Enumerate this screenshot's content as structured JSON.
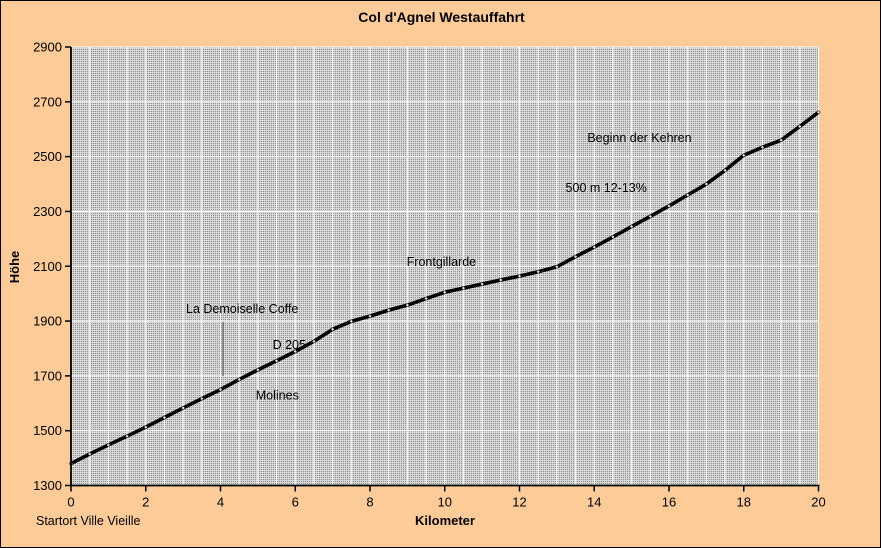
{
  "colors": {
    "page_background": "#fccb97",
    "plot_pattern_base": "#d7d7d7",
    "plot_pattern_dot": "#8e8e8e",
    "gridline": "#ffffff",
    "axis": "#000000",
    "series_line": "#000000",
    "pointer_line": "#757575",
    "text": "#000000"
  },
  "chart_data": {
    "type": "line",
    "title": "Col d'Agnel Westauffahrt",
    "xlabel": "Kilometer",
    "ylabel": "Höhe",
    "start_label": "Startort Ville Vieille",
    "xlim": [
      0,
      20
    ],
    "ylim": [
      1300,
      2900
    ],
    "x_ticks": [
      0,
      2,
      4,
      6,
      8,
      10,
      12,
      14,
      16,
      18,
      20
    ],
    "y_ticks": [
      1300,
      1500,
      1700,
      1900,
      2100,
      2300,
      2500,
      2700,
      2900
    ],
    "grid": {
      "x_minor_step_km": 0.5,
      "y_step_m": 200,
      "style": "white-on-gray-dot-pattern"
    },
    "legend": "none",
    "series": [
      {
        "x": [
          0,
          0.5,
          1,
          1.5,
          2,
          2.5,
          3,
          3.5,
          4,
          4.5,
          5,
          5.5,
          6,
          6.5,
          7,
          7.5,
          8,
          8.5,
          9,
          9.5,
          10,
          10.5,
          11,
          11.5,
          12,
          12.5,
          13,
          13.5,
          14,
          14.5,
          15,
          15.5,
          16,
          16.5,
          17,
          17.5,
          18,
          18.5,
          19,
          19.5,
          20
        ],
        "y": [
          1380,
          1415,
          1448,
          1480,
          1513,
          1548,
          1583,
          1617,
          1650,
          1687,
          1722,
          1755,
          1789,
          1826,
          1870,
          1899,
          1918,
          1940,
          1958,
          1982,
          2005,
          2020,
          2035,
          2050,
          2064,
          2080,
          2098,
          2135,
          2170,
          2207,
          2245,
          2282,
          2320,
          2360,
          2400,
          2450,
          2505,
          2534,
          2560,
          2610,
          2662
        ]
      }
    ],
    "annotations": [
      {
        "text": "La Demoiselle Coffe",
        "km": 4.58,
        "m": 1944
      },
      {
        "text": "D 205",
        "km": 5.84,
        "m": 1813
      },
      {
        "text": "Molines",
        "km": 5.52,
        "m": 1628
      },
      {
        "text": "Frontgillarde",
        "km": 9.91,
        "m": 2115
      },
      {
        "text": "500 m 12-13%",
        "km": 14.32,
        "m": 2385
      },
      {
        "text": "Beginn der Kehren",
        "km": 15.21,
        "m": 2568
      }
    ],
    "pointer_line": {
      "km": 4.07,
      "m_from": 1700,
      "m_to": 1896
    }
  }
}
